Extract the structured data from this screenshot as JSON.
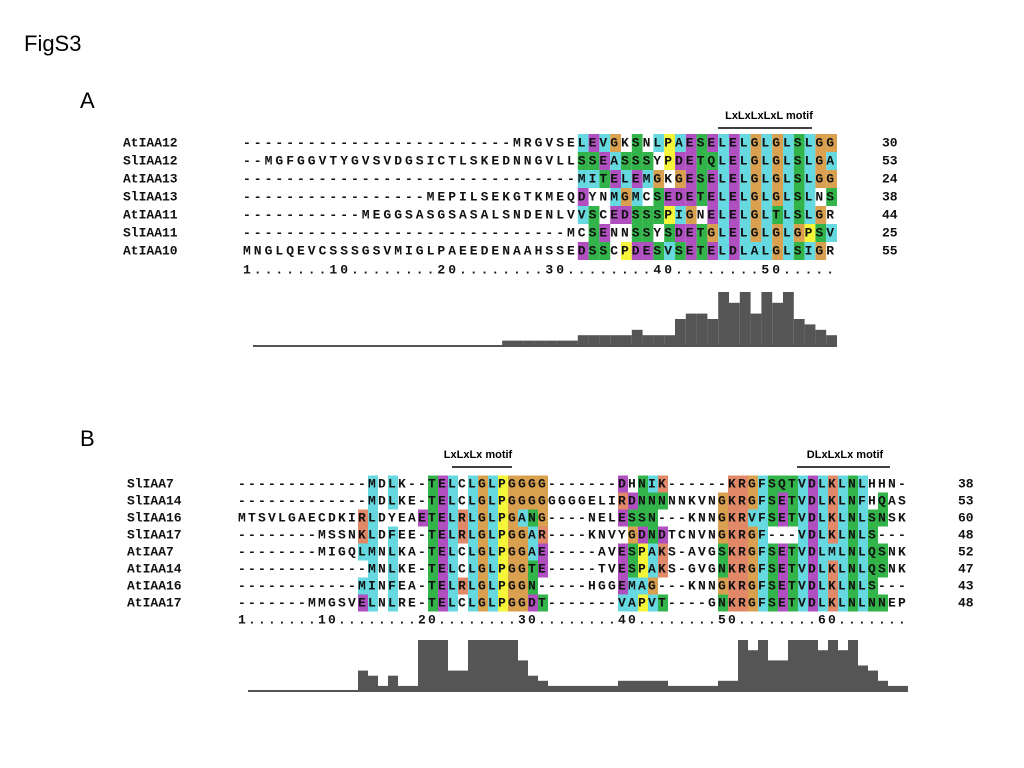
{
  "figure_title": "FigS3",
  "panels": [
    {
      "label": "A",
      "motifs": [
        "LxLxLxLxL motif"
      ],
      "sequences": [
        {
          "name": "AtIAA12",
          "residues": "-------------------------MRGVSELEVGKSNLPAESELELGLGLSLGG",
          "length": 30
        },
        {
          "name": "SlIAA12",
          "residues": "--MGFGGVTYGVSVDGSICTLSKEDNNGVLLSSEASSSYPDETQLELGLGLSLGA",
          "length": 53
        },
        {
          "name": "AtIAA13",
          "residues": "-------------------------------MITELEMGKGESELELGLGLSLGG",
          "length": 24
        },
        {
          "name": "SlIAA13",
          "residues": "-----------------MEPILSEKGTKMEQDYNMGMCSEDETELELGLGLSLNS",
          "length": 38
        },
        {
          "name": "AtIAA11",
          "residues": "-----------MEGGSASGSASALSNDENLVVSCEDSSSPIGNELELGLTLSLGR",
          "length": 44
        },
        {
          "name": "SlIAA11",
          "residues": "------------------------------MCSENNSSYSDETGLELGLGLGPSV",
          "length": 25
        },
        {
          "name": "AtIAA10",
          "residues": "MNGLQEVCSSSGSVMIGLPAEEDENAAHSSEDSSCPDESVSETELDLALGLSIGR",
          "length": 55
        }
      ],
      "ruler": "1.......10........20........30........40........50.....",
      "residue_colors": [
        {
          "residues": "LIVMAF",
          "color": "#66d9e0"
        },
        {
          "residues": "ED",
          "color": "#b04fc0"
        },
        {
          "residues": "G",
          "color": "#d9a050"
        },
        {
          "residues": "STQ",
          "color": "#33b44a"
        },
        {
          "residues": "P",
          "color": "#f5f53a"
        }
      ],
      "conservation": {
        "color": "#555555",
        "ylim": [
          0,
          10
        ],
        "values": [
          0,
          0,
          0,
          0,
          0,
          0,
          0,
          0,
          0,
          0,
          0,
          0,
          0,
          0,
          0,
          0,
          0,
          0,
          0,
          0,
          0,
          0,
          0,
          0,
          1,
          1,
          1,
          1,
          1,
          1,
          1,
          2,
          2,
          2,
          2,
          2,
          3,
          2,
          2,
          2,
          5,
          6,
          6,
          5,
          10,
          8,
          10,
          6,
          10,
          8,
          10,
          5,
          4,
          3,
          2
        ]
      }
    },
    {
      "label": "B",
      "motifs": [
        "LxLxLx motif",
        "DLxLxLx motif"
      ],
      "sequences": [
        {
          "name": "SlIAA7",
          "residues": "-------------MDLK--TELCLGLPGGGG-------DHNIK------KRGFSQTVDLKLNLHHN-",
          "length": 38
        },
        {
          "name": "SlIAA14",
          "residues": "-------------MDLKE-TELCLGLPGGGGGGGGELIRDNNNNNKVNGKRGFSETVDLKLNFHQAS",
          "length": 53
        },
        {
          "name": "SlIAA16",
          "residues": "MTSVLGAECDKIRLDYEAETELRLGLPGANG----NELESSN---KNNGKRVFSETVDLKLNLSNSK",
          "length": 60
        },
        {
          "name": "SlIAA17",
          "residues": "--------MSSNKLDFEE-TELRLGLPGGAR----KNVYGDNDTCNVNGKRGF---VDLKLNLS---",
          "length": 48
        },
        {
          "name": "AtIAA7",
          "residues": "--------MIGQLMNLKA-TELCLGLPGGAE-----AVESPAKS-AVGSKRGFSETVDLMLNLQSNK",
          "length": 52
        },
        {
          "name": "AtIAA14",
          "residues": "-------------MNLKE-TELCLGLPGGTE-----TVESPAKS-GVGNKRGFSETVDLKLNLQSNK",
          "length": 47
        },
        {
          "name": "AtIAA16",
          "residues": "------------MINFEA-TELRLGLPGGN-----HGGEMAG---KNNGKRGFSETVDLKLNLS---",
          "length": 43
        },
        {
          "name": "AtIAA17",
          "residues": "-------MMGSVELNLRE-TELCLGLPGGDT-------VAPVT----GNKRGFSETVDLKLNLNNEP",
          "length": 48
        }
      ],
      "ruler": "1.......10........20........30........40........50........60.......",
      "residue_colors": [
        {
          "residues": "LIVMAF",
          "color": "#66d9e0"
        },
        {
          "residues": "ED",
          "color": "#b04fc0"
        },
        {
          "residues": "G",
          "color": "#d9a050"
        },
        {
          "residues": "STQN",
          "color": "#33b44a"
        },
        {
          "residues": "P",
          "color": "#f5f53a"
        },
        {
          "residues": "KR",
          "color": "#e08868"
        }
      ],
      "conservation": {
        "color": "#555555",
        "ylim": [
          0,
          10
        ],
        "values": [
          0,
          0,
          0,
          0,
          0,
          0,
          0,
          0,
          0,
          0,
          0,
          0,
          4,
          3,
          1,
          3,
          1,
          1,
          10,
          10,
          10,
          4,
          4,
          10,
          10,
          10,
          10,
          10,
          6,
          3,
          2,
          1,
          1,
          1,
          1,
          1,
          1,
          1,
          2,
          2,
          2,
          2,
          2,
          1,
          1,
          1,
          1,
          1,
          2,
          2,
          10,
          8,
          10,
          6,
          6,
          10,
          10,
          10,
          8,
          10,
          8,
          10,
          5,
          4,
          2,
          1,
          1
        ]
      }
    }
  ]
}
